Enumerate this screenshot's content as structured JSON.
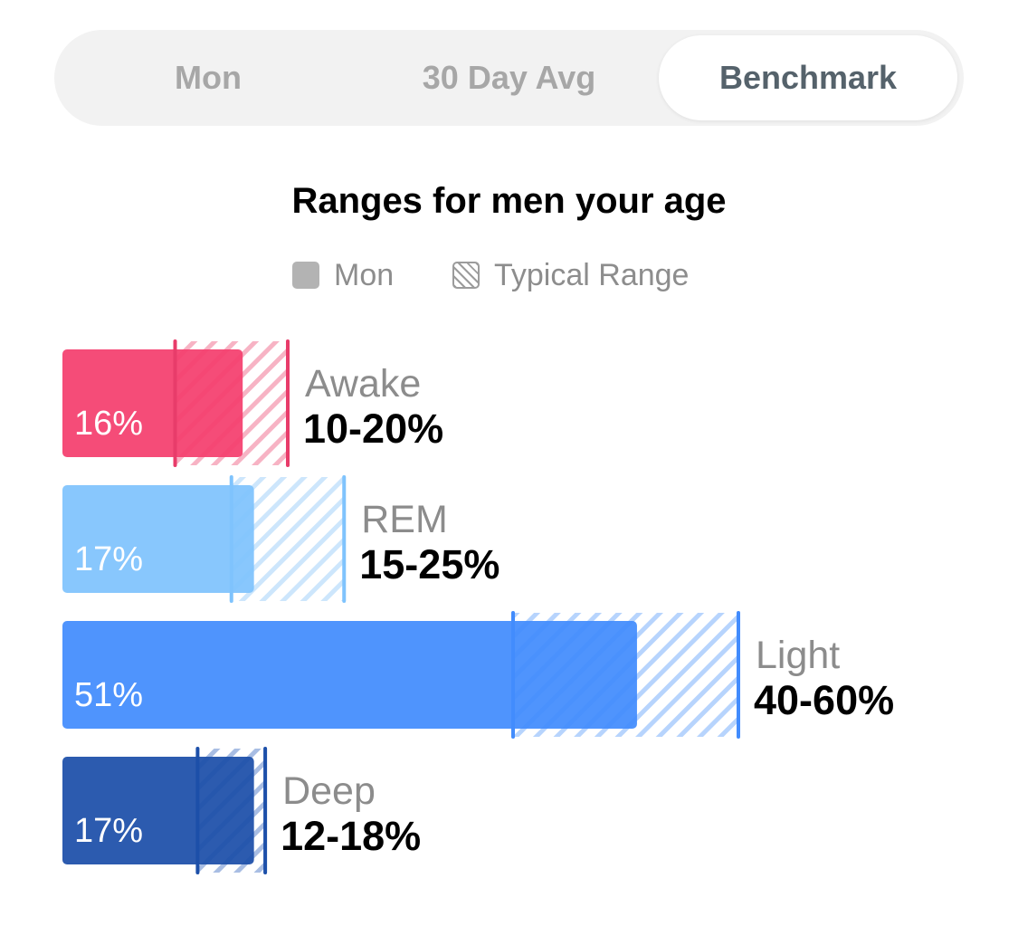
{
  "tabs": [
    {
      "label": "Mon",
      "active": false
    },
    {
      "label": "30 Day Avg",
      "active": false
    },
    {
      "label": "Benchmark",
      "active": true
    }
  ],
  "title": "Ranges for men your age",
  "legend": {
    "mon_label": "Mon",
    "range_label": "Typical Range"
  },
  "chart_data": {
    "type": "bar",
    "title": "Ranges for men your age",
    "unit": "%",
    "series": [
      {
        "name": "Mon",
        "values": [
          16,
          17,
          51,
          17
        ]
      },
      {
        "name": "Typical Range",
        "ranges": [
          [
            10,
            20
          ],
          [
            15,
            25
          ],
          [
            40,
            60
          ],
          [
            12,
            18
          ]
        ]
      }
    ],
    "categories": [
      "Awake",
      "REM",
      "Light",
      "Deep"
    ],
    "stages": [
      {
        "name": "Awake",
        "value": 16,
        "value_label": "16%",
        "range": [
          10,
          20
        ],
        "range_label": "10-20%",
        "color": "#f43e6e",
        "range_color": "#f7b3c4",
        "line_color": "#e83c6a"
      },
      {
        "name": "REM",
        "value": 17,
        "value_label": "17%",
        "range": [
          15,
          25
        ],
        "range_label": "15-25%",
        "color": "#7fc3fd",
        "range_color": "#cde6fc",
        "line_color": "#7fc3fd"
      },
      {
        "name": "Light",
        "value": 51,
        "value_label": "51%",
        "range": [
          40,
          60
        ],
        "range_label": "40-60%",
        "color": "#428cfd",
        "range_color": "#b7d4fd",
        "line_color": "#428cfd"
      },
      {
        "name": "Deep",
        "value": 17,
        "value_label": "17%",
        "range": [
          12,
          18
        ],
        "range_label": "12-18%",
        "color": "#1c4fa9",
        "range_color": "#a8bde3",
        "line_color": "#1c4fa9"
      }
    ]
  }
}
